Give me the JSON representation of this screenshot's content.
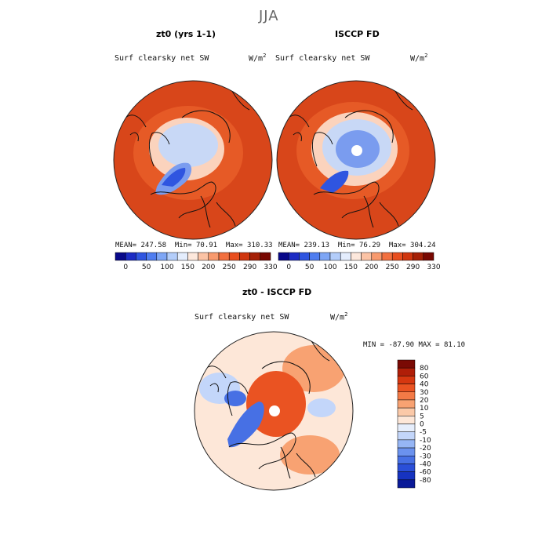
{
  "figure": {
    "title": "JJA"
  },
  "panels": [
    {
      "title": "zt0 (yrs 1-1)",
      "field": "Surf clearsky net SW",
      "units": "W/m",
      "units_exp": "2",
      "stats": {
        "mean_label": "MEAN=",
        "mean": "247.58",
        "min_label": "Min=",
        "min": "70.91",
        "max_label": "Max=",
        "max": "310.33"
      }
    },
    {
      "title": "ISCCP FD",
      "field": "Surf clearsky net SW",
      "units": "W/m",
      "units_exp": "2",
      "stats": {
        "mean_label": "MEAN=",
        "mean": "239.13",
        "min_label": "Min=",
        "min": "76.29",
        "max_label": "Max=",
        "max": "304.24"
      }
    }
  ],
  "colorbar_abs": {
    "colors": [
      "#08088a",
      "#1c2bc4",
      "#2f55e0",
      "#4f7df0",
      "#7ea6f5",
      "#b3cdfa",
      "#e4edfd",
      "#fde8dc",
      "#fbc3a5",
      "#f89a6e",
      "#f2703f",
      "#e84e1e",
      "#d0360e",
      "#a52006",
      "#780802"
    ],
    "tick_labels": [
      "0",
      "50",
      "100",
      "150",
      "200",
      "250",
      "290",
      "330"
    ]
  },
  "diff_panel": {
    "title": "zt0 - ISCCP FD",
    "field": "Surf clearsky net SW",
    "units": "W/m",
    "units_exp": "2",
    "stats": {
      "min_label": "MIN =",
      "min": "-87.90",
      "max_label": "MAX =",
      "max": "81.10"
    }
  },
  "colorbar_diff": {
    "colors_top_to_bottom": [
      "#7a0a04",
      "#b01e08",
      "#d63710",
      "#ea5322",
      "#f37a46",
      "#f8a272",
      "#fbc9a8",
      "#fde7d8",
      "#e6eefc",
      "#c3d6fa",
      "#96b6f5",
      "#6b92ee",
      "#4770e4",
      "#2a4fd8",
      "#1633c0",
      "#0a1a98"
    ],
    "tick_labels_top_to_bottom": [
      "80",
      "60",
      "40",
      "30",
      "20",
      "10",
      "5",
      "0",
      "-5",
      "-10",
      "-20",
      "-30",
      "-40",
      "-60",
      "-80"
    ]
  },
  "map_colors": {
    "abs_base": "#e65a26",
    "abs_outer": "#d8461a",
    "abs_mid": "#f09060",
    "abs_light": "#fbd3bd",
    "abs_pale_blue": "#c8d8f6",
    "abs_blue": "#7a9cef",
    "abs_deep_blue": "#2f55e0",
    "diff_base": "#fde7d8",
    "diff_red": "#ea5322",
    "diff_light_red": "#f8a272",
    "diff_blue": "#4770e4",
    "diff_light_blue": "#c3d6fa"
  }
}
